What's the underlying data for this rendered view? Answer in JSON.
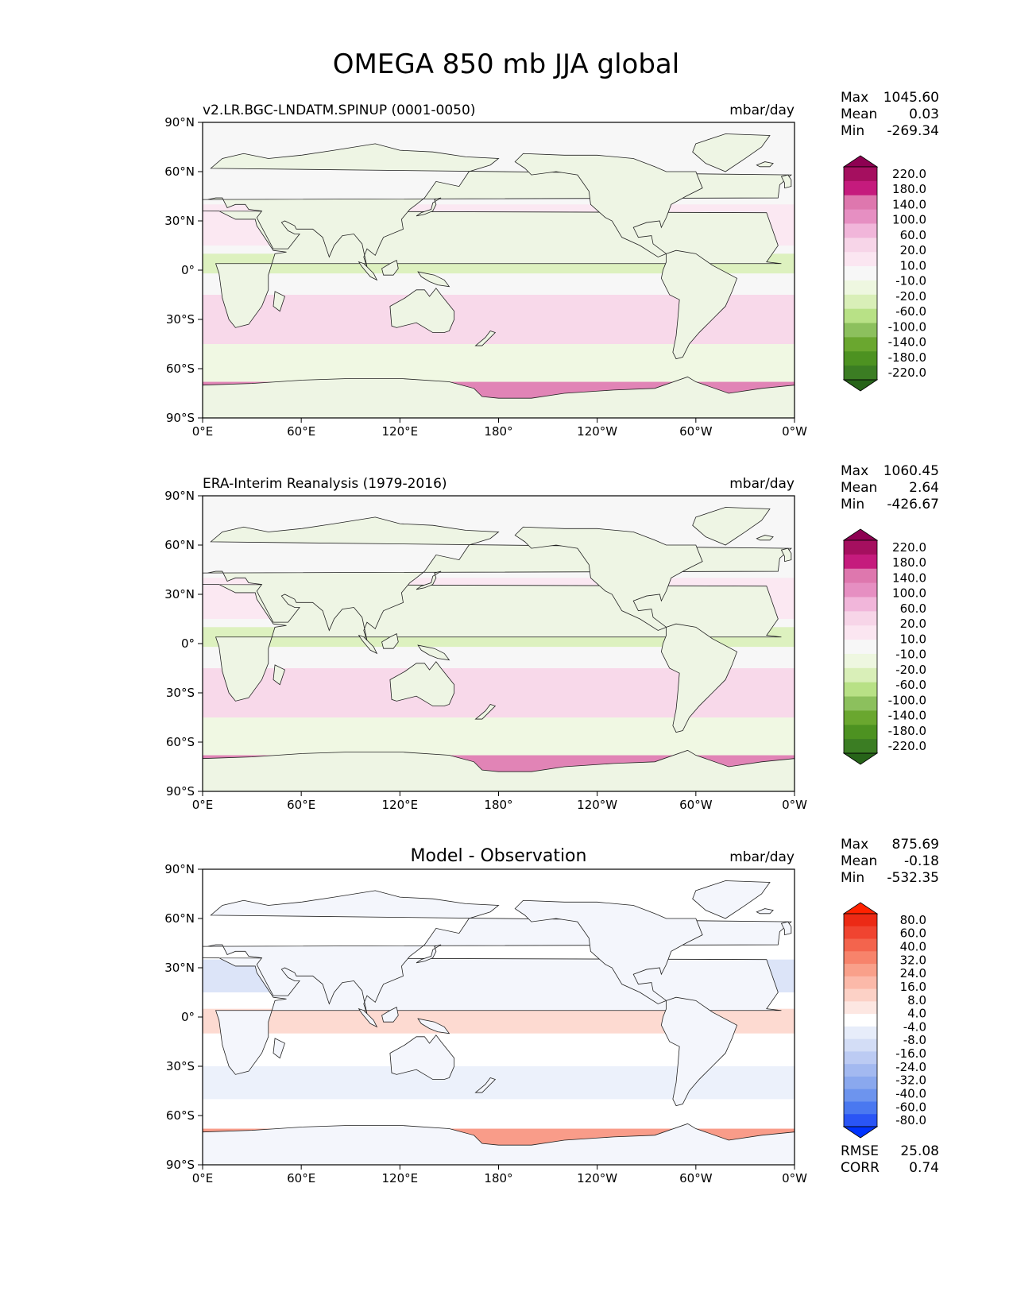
{
  "figure": {
    "title": "OMEGA 850 mb JJA global"
  },
  "axes": {
    "x_ticks": [
      "0°E",
      "60°E",
      "120°E",
      "180°",
      "120°W",
      "60°W",
      "0°W"
    ],
    "y_ticks": [
      "90°N",
      "60°N",
      "30°N",
      "0°",
      "30°S",
      "60°S",
      "90°S"
    ]
  },
  "colors": {
    "omega_colors": [
      "#276419",
      "#3b7d23",
      "#4d9221",
      "#6aa72f",
      "#8cc05d",
      "#b8e186",
      "#d9efb8",
      "#eef7e0",
      "#f7f7f7",
      "#fbe6f1",
      "#f7d5e8",
      "#f1b6da",
      "#e68fc2",
      "#de77ae",
      "#c51b7d",
      "#a50f5f",
      "#8e0152"
    ],
    "diff_colors": [
      "#0033ff",
      "#2a55f5",
      "#4a78f0",
      "#6d94ee",
      "#8aa8ee",
      "#a3b9f0",
      "#bccbf3",
      "#d3ddf6",
      "#e7edfa",
      "#ffffff",
      "#fde7e2",
      "#fcd1c6",
      "#fbb9a9",
      "#f9a08a",
      "#f7836b",
      "#f3644d",
      "#f04430",
      "#ec2a15",
      "#ff2200"
    ]
  },
  "chart_data": [
    {
      "type": "heatmap",
      "title": "v2.LR.BGC-LNDATM.SPINUP (0001-0050)",
      "units": "mbar/day",
      "xlim": [
        0,
        360
      ],
      "ylim": [
        -90,
        90
      ],
      "stats": [
        {
          "label": "Max",
          "value": "1045.60"
        },
        {
          "label": "Mean",
          "value": "0.03"
        },
        {
          "label": "Min",
          "value": "-269.34"
        }
      ],
      "colorbar": {
        "levels": [
          "220.0",
          "180.0",
          "140.0",
          "100.0",
          "60.0",
          "20.0",
          "10.0",
          "-10.0",
          "-20.0",
          "-60.0",
          "-100.0",
          "-140.0",
          "-180.0",
          "-220.0"
        ],
        "palette": "omega"
      }
    },
    {
      "type": "heatmap",
      "title": "ERA-Interim Reanalysis (1979-2016)",
      "units": "mbar/day",
      "xlim": [
        0,
        360
      ],
      "ylim": [
        -90,
        90
      ],
      "stats": [
        {
          "label": "Max",
          "value": "1060.45"
        },
        {
          "label": "Mean",
          "value": "2.64"
        },
        {
          "label": "Min",
          "value": "-426.67"
        }
      ],
      "colorbar": {
        "levels": [
          "220.0",
          "180.0",
          "140.0",
          "100.0",
          "60.0",
          "20.0",
          "10.0",
          "-10.0",
          "-20.0",
          "-60.0",
          "-100.0",
          "-140.0",
          "-180.0",
          "-220.0"
        ],
        "palette": "omega"
      }
    },
    {
      "type": "heatmap",
      "title": "Model - Observation",
      "units": "mbar/day",
      "xlim": [
        0,
        360
      ],
      "ylim": [
        -90,
        90
      ],
      "stats": [
        {
          "label": "Max",
          "value": "875.69"
        },
        {
          "label": "Mean",
          "value": "-0.18"
        },
        {
          "label": "Min",
          "value": "-532.35"
        }
      ],
      "extra_stats": [
        {
          "label": "RMSE",
          "value": "25.08"
        },
        {
          "label": "CORR",
          "value": "0.74"
        }
      ],
      "colorbar": {
        "levels": [
          "80.0",
          "60.0",
          "40.0",
          "32.0",
          "24.0",
          "16.0",
          "8.0",
          "4.0",
          "-4.0",
          "-8.0",
          "-16.0",
          "-24.0",
          "-32.0",
          "-40.0",
          "-60.0",
          "-80.0"
        ],
        "palette": "diff"
      }
    }
  ]
}
